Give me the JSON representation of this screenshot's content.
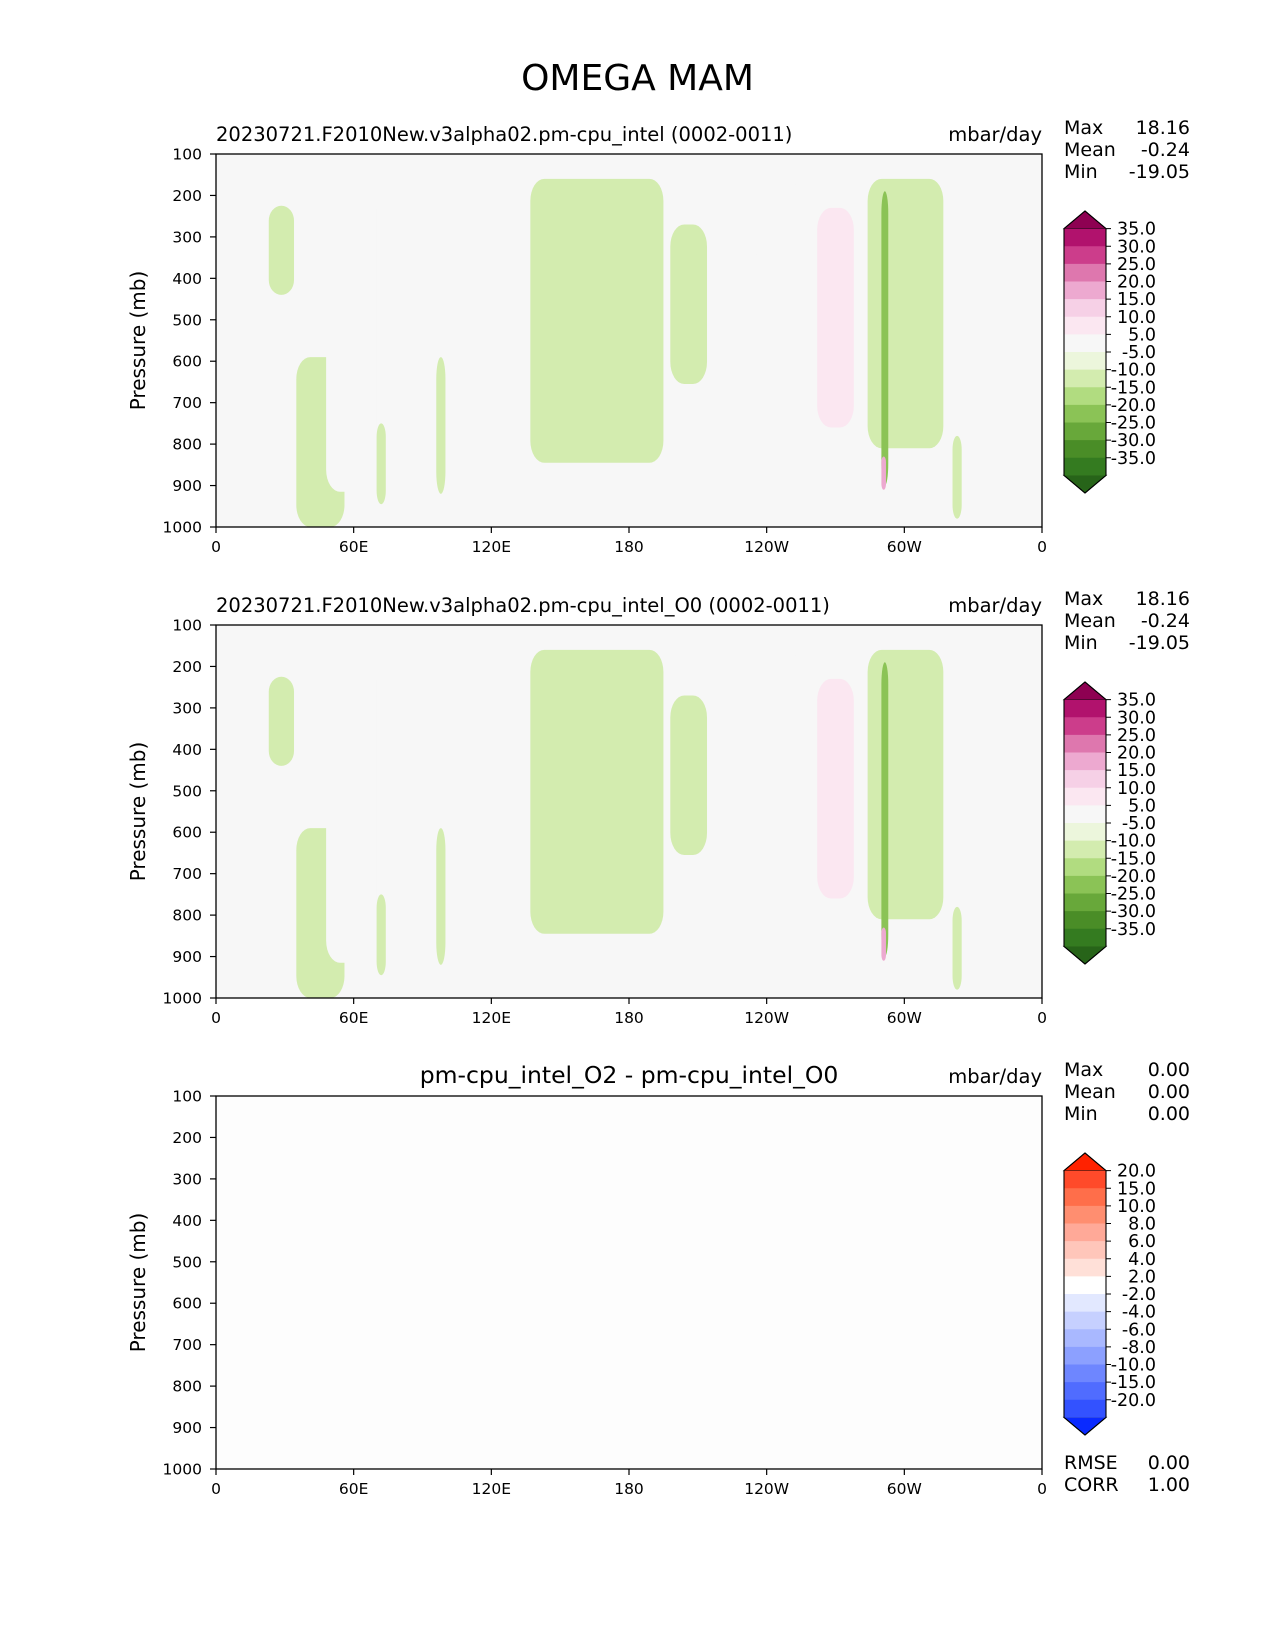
{
  "figure": {
    "title": "OMEGA MAM"
  },
  "chart_data": [
    {
      "type": "heatmap",
      "title": "20230721.F2010New.v3alpha02.pm-cpu_intel (0002-0011)",
      "title_align": "left",
      "units": "mbar/day",
      "ylabel": "Pressure (mb)",
      "x_ticks": [
        "0",
        "60E",
        "120E",
        "180",
        "120W",
        "60W",
        "0"
      ],
      "y_ticks": [
        "100",
        "200",
        "300",
        "400",
        "500",
        "600",
        "700",
        "800",
        "900",
        "1000"
      ],
      "xlim": [
        0,
        360
      ],
      "ylim": [
        100,
        1000
      ],
      "stats": [
        {
          "label": "Max",
          "value": "18.16"
        },
        {
          "label": "Mean",
          "value": "-0.24"
        },
        {
          "label": "Min",
          "value": "-19.05"
        }
      ],
      "colorbar": {
        "labels": [
          "35.0",
          "30.0",
          "25.0",
          "20.0",
          "15.0",
          "10.0",
          "5.0",
          "-5.0",
          "-10.0",
          "-15.0",
          "-20.0",
          "-25.0",
          "-30.0",
          "-35.0"
        ],
        "colors": [
          "#8e0152",
          "#b1126d",
          "#cc3d8b",
          "#de77ae",
          "#eda9d0",
          "#f6d0e6",
          "#fbe7f1",
          "#f7f7f7",
          "#ecf6dc",
          "#d3ecaf",
          "#b1dc80",
          "#8bc356",
          "#68a83a",
          "#4a8d27",
          "#347b20",
          "#276419"
        ]
      },
      "field": {
        "background": "#f7f7f7",
        "features": [
          {
            "kind": "pos",
            "lon": [
              0,
              14
            ],
            "p": [
              195,
              915
            ],
            "level": 1
          },
          {
            "kind": "neg",
            "lon": [
              23,
              34
            ],
            "p": [
              225,
              440
            ],
            "level": 1
          },
          {
            "kind": "neg",
            "lon": [
              35,
              56
            ],
            "p": [
              590,
              1000
            ],
            "level": 1
          },
          {
            "kind": "pos",
            "lon": [
              48,
              70
            ],
            "p": [
              180,
              915
            ],
            "level": 1
          },
          {
            "kind": "pos",
            "lon": [
              85,
              89
            ],
            "p": [
              290,
              520
            ],
            "level": 1
          },
          {
            "kind": "pos",
            "lon": [
              96,
              101
            ],
            "p": [
              490,
              585
            ],
            "level": 1
          },
          {
            "kind": "neg",
            "lon": [
              70,
              74
            ],
            "p": [
              750,
              945
            ],
            "level": 1
          },
          {
            "kind": "neg",
            "lon": [
              96,
              100
            ],
            "p": [
              590,
              920
            ],
            "level": 1
          },
          {
            "kind": "neg",
            "lon": [
              137,
              195
            ],
            "p": [
              160,
              845
            ],
            "level": 1
          },
          {
            "kind": "neg",
            "lon": [
              198,
              214
            ],
            "p": [
              270,
              655
            ],
            "level": 1
          },
          {
            "kind": "pos",
            "lon": [
              231,
              247
            ],
            "p": [
              340,
              900
            ],
            "level": 1
          },
          {
            "kind": "pos",
            "lon": [
              249,
              279
            ],
            "p": [
              170,
              905
            ],
            "level": 1
          },
          {
            "kind": "pos",
            "lon": [
              262,
              278
            ],
            "p": [
              230,
              760
            ],
            "level": 2
          },
          {
            "kind": "pos",
            "lon": [
              279,
              285
            ],
            "p": [
              430,
              920
            ],
            "level": 1
          },
          {
            "kind": "neg",
            "lon": [
              284,
              317
            ],
            "p": [
              160,
              810
            ],
            "level": 1
          },
          {
            "kind": "neg",
            "lon": [
              290,
              293
            ],
            "p": [
              190,
              900
            ],
            "level": 3
          },
          {
            "kind": "pos",
            "lon": [
              290,
              292
            ],
            "p": [
              830,
              910
            ],
            "level": 4
          },
          {
            "kind": "neg",
            "lon": [
              321,
              325
            ],
            "p": [
              780,
              980
            ],
            "level": 1
          },
          {
            "kind": "pos",
            "lon": [
              332,
              360
            ],
            "p": [
              190,
              930
            ],
            "level": 1
          }
        ]
      }
    },
    {
      "type": "heatmap",
      "title": "20230721.F2010New.v3alpha02.pm-cpu_intel_O0 (0002-0011)",
      "title_align": "left",
      "units": "mbar/day",
      "ylabel": "Pressure (mb)",
      "x_ticks": [
        "0",
        "60E",
        "120E",
        "180",
        "120W",
        "60W",
        "0"
      ],
      "y_ticks": [
        "100",
        "200",
        "300",
        "400",
        "500",
        "600",
        "700",
        "800",
        "900",
        "1000"
      ],
      "xlim": [
        0,
        360
      ],
      "ylim": [
        100,
        1000
      ],
      "stats": [
        {
          "label": "Max",
          "value": "18.16"
        },
        {
          "label": "Mean",
          "value": "-0.24"
        },
        {
          "label": "Min",
          "value": "-19.05"
        }
      ],
      "colorbar": {
        "labels": [
          "35.0",
          "30.0",
          "25.0",
          "20.0",
          "15.0",
          "10.0",
          "5.0",
          "-5.0",
          "-10.0",
          "-15.0",
          "-20.0",
          "-25.0",
          "-30.0",
          "-35.0"
        ],
        "colors": [
          "#8e0152",
          "#b1126d",
          "#cc3d8b",
          "#de77ae",
          "#eda9d0",
          "#f6d0e6",
          "#fbe7f1",
          "#f7f7f7",
          "#ecf6dc",
          "#d3ecaf",
          "#b1dc80",
          "#8bc356",
          "#68a83a",
          "#4a8d27",
          "#347b20",
          "#276419"
        ]
      },
      "field": {
        "background": "#f7f7f7",
        "features": [
          {
            "kind": "pos",
            "lon": [
              0,
              14
            ],
            "p": [
              195,
              915
            ],
            "level": 1
          },
          {
            "kind": "neg",
            "lon": [
              23,
              34
            ],
            "p": [
              225,
              440
            ],
            "level": 1
          },
          {
            "kind": "neg",
            "lon": [
              35,
              56
            ],
            "p": [
              590,
              1000
            ],
            "level": 1
          },
          {
            "kind": "pos",
            "lon": [
              48,
              70
            ],
            "p": [
              180,
              915
            ],
            "level": 1
          },
          {
            "kind": "pos",
            "lon": [
              85,
              89
            ],
            "p": [
              290,
              520
            ],
            "level": 1
          },
          {
            "kind": "pos",
            "lon": [
              96,
              101
            ],
            "p": [
              490,
              585
            ],
            "level": 1
          },
          {
            "kind": "neg",
            "lon": [
              70,
              74
            ],
            "p": [
              750,
              945
            ],
            "level": 1
          },
          {
            "kind": "neg",
            "lon": [
              96,
              100
            ],
            "p": [
              590,
              920
            ],
            "level": 1
          },
          {
            "kind": "neg",
            "lon": [
              137,
              195
            ],
            "p": [
              160,
              845
            ],
            "level": 1
          },
          {
            "kind": "neg",
            "lon": [
              198,
              214
            ],
            "p": [
              270,
              655
            ],
            "level": 1
          },
          {
            "kind": "pos",
            "lon": [
              231,
              247
            ],
            "p": [
              340,
              900
            ],
            "level": 1
          },
          {
            "kind": "pos",
            "lon": [
              249,
              279
            ],
            "p": [
              170,
              905
            ],
            "level": 1
          },
          {
            "kind": "pos",
            "lon": [
              262,
              278
            ],
            "p": [
              230,
              760
            ],
            "level": 2
          },
          {
            "kind": "pos",
            "lon": [
              279,
              285
            ],
            "p": [
              430,
              920
            ],
            "level": 1
          },
          {
            "kind": "neg",
            "lon": [
              284,
              317
            ],
            "p": [
              160,
              810
            ],
            "level": 1
          },
          {
            "kind": "neg",
            "lon": [
              290,
              293
            ],
            "p": [
              190,
              900
            ],
            "level": 3
          },
          {
            "kind": "pos",
            "lon": [
              290,
              292
            ],
            "p": [
              830,
              910
            ],
            "level": 4
          },
          {
            "kind": "neg",
            "lon": [
              321,
              325
            ],
            "p": [
              780,
              980
            ],
            "level": 1
          },
          {
            "kind": "pos",
            "lon": [
              332,
              360
            ],
            "p": [
              190,
              930
            ],
            "level": 1
          }
        ]
      }
    },
    {
      "type": "heatmap",
      "title": "pm-cpu_intel_O2 - pm-cpu_intel_O0",
      "title_align": "center",
      "units": "mbar/day",
      "ylabel": "Pressure (mb)",
      "x_ticks": [
        "0",
        "60E",
        "120E",
        "180",
        "120W",
        "60W",
        "0"
      ],
      "y_ticks": [
        "100",
        "200",
        "300",
        "400",
        "500",
        "600",
        "700",
        "800",
        "900",
        "1000"
      ],
      "xlim": [
        0,
        360
      ],
      "ylim": [
        100,
        1000
      ],
      "stats": [
        {
          "label": "Max",
          "value": "0.00"
        },
        {
          "label": "Mean",
          "value": "0.00"
        },
        {
          "label": "Min",
          "value": "0.00"
        }
      ],
      "extra_stats": [
        {
          "label": "RMSE",
          "value": "0.00"
        },
        {
          "label": "CORR",
          "value": "1.00"
        }
      ],
      "colorbar": {
        "labels": [
          "20.0",
          "15.0",
          "10.0",
          "8.0",
          "6.0",
          "4.0",
          "2.0",
          "-2.0",
          "-4.0",
          "-6.0",
          "-8.0",
          "-10.0",
          "-15.0",
          "-20.0"
        ],
        "colors": [
          "#ff2200",
          "#ff4a2a",
          "#ff6e4a",
          "#ff8e70",
          "#ffa998",
          "#ffc6ba",
          "#ffe0d8",
          "#ffffff",
          "#e2e8ff",
          "#c6d0ff",
          "#a9b8ff",
          "#8ca0ff",
          "#6e86ff",
          "#506cff",
          "#3352ff",
          "#0a2aff"
        ]
      },
      "field": {
        "background": "#fdfdfd",
        "features": []
      }
    }
  ]
}
